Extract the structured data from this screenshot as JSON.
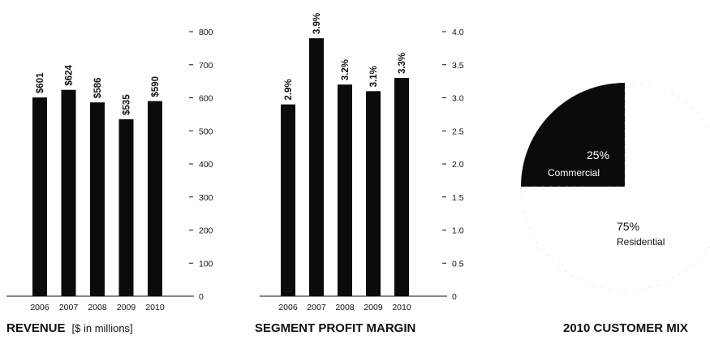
{
  "chart_data": [
    {
      "type": "bar",
      "title": "REVENUE",
      "subtitle": "[$ in millions]",
      "categories": [
        "2006",
        "2007",
        "2008",
        "2009",
        "2010"
      ],
      "values": [
        601,
        624,
        586,
        535,
        590
      ],
      "value_labels": [
        "$601",
        "$624",
        "$586",
        "$535",
        "$590"
      ],
      "ylim": [
        0,
        800
      ],
      "yticks": [
        "0",
        "100",
        "200",
        "300",
        "400",
        "500",
        "600",
        "700",
        "800"
      ],
      "ytick_values": [
        0,
        100,
        200,
        300,
        400,
        500,
        600,
        700,
        800
      ],
      "y_axis_side": "right",
      "grid": false
    },
    {
      "type": "bar",
      "title": "SEGMENT PROFIT MARGIN",
      "categories": [
        "2006",
        "2007",
        "2008",
        "2009",
        "2010"
      ],
      "values": [
        2.9,
        3.9,
        3.2,
        3.1,
        3.3
      ],
      "value_labels": [
        "2.9%",
        "3.9%",
        "3.2%",
        "3.1%",
        "3.3%"
      ],
      "ylim": [
        0,
        4.0
      ],
      "yticks": [
        "0",
        "0.5",
        "1.0",
        "1.5",
        "2.0",
        "2.5",
        "3.0",
        "3.5",
        "4.0"
      ],
      "ytick_values": [
        0,
        0.5,
        1.0,
        1.5,
        2.0,
        2.5,
        3.0,
        3.5,
        4.0
      ],
      "y_axis_side": "right",
      "grid": false
    },
    {
      "type": "pie",
      "title": "2010 CUSTOMER MIX",
      "slices": [
        {
          "name": "Commercial",
          "value": 25,
          "label": "25%",
          "color": "#0b0b0b"
        },
        {
          "name": "Residential",
          "value": 75,
          "label": "75%",
          "color": "#ffffff"
        }
      ]
    }
  ]
}
